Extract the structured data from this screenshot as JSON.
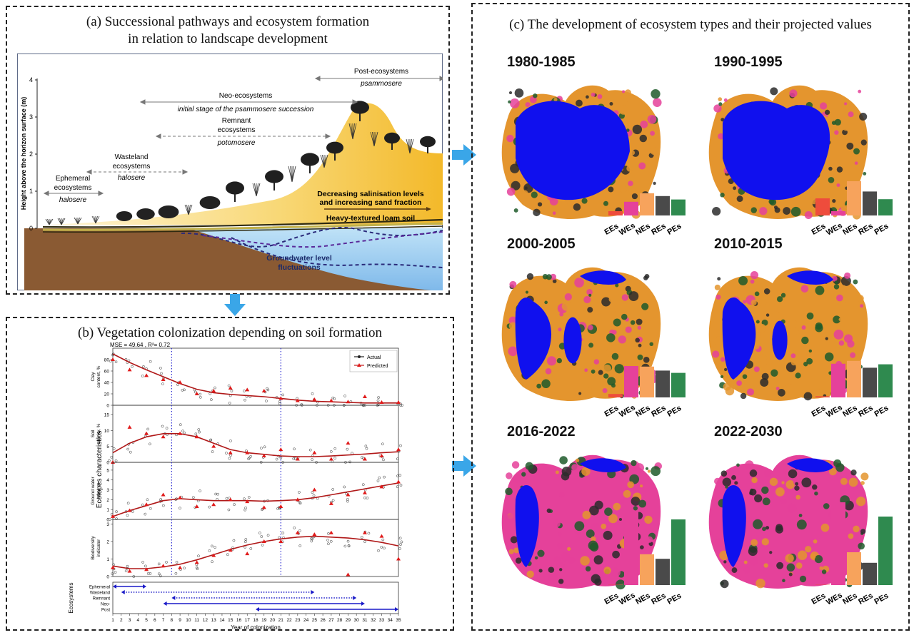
{
  "panel_a": {
    "title_line1": "(a) Successional pathways and ecosystem formation",
    "title_line2": "in relation to landscape development",
    "y_axis_label": "Height above the horizon surface (m)",
    "y_ticks": [
      "0",
      "1",
      "2",
      "3",
      "4"
    ],
    "labels": {
      "post": "Post-ecosystems",
      "post_sub": "psammosere",
      "neo": "Neo-ecosystems",
      "neo_sub": "initial stage of the psammosere succession",
      "remnant1": "Remnant",
      "remnant2": "ecosystems",
      "remnant_sub": "potomosere",
      "wasteland1": "Wasteland",
      "wasteland2": "ecosystems",
      "wasteland_sub": "halosere",
      "ephemeral1": "Ephemeral",
      "ephemeral2": "ecosystems",
      "ephemeral_sub": "halosere",
      "decreasing1": "Decreasing salinisation levels",
      "decreasing2": "and increasing sand fraction",
      "loam": "Heavy-textured loam soil",
      "gw1": "Groundwater level",
      "gw2": "fluctuations"
    }
  },
  "panel_b": {
    "title": "(b) Vegetation colonization depending on soil formation",
    "mse_label": "MSE = 49.64 , R²= 0.72",
    "legend_actual": "Actual",
    "legend_predicted": "Predicted",
    "group_label": "Ecotopes characteristics",
    "x_label": "Year of colonization",
    "eco_label": "Ecosystems",
    "x_ticks": [
      "1",
      "2",
      "3",
      "4",
      "5",
      "6",
      "7",
      "8",
      "9",
      "10",
      "11",
      "12",
      "13",
      "14",
      "15",
      "16",
      "17",
      "18",
      "19",
      "20",
      "21",
      "22",
      "23",
      "24",
      "25",
      "26",
      "27",
      "28",
      "29",
      "30",
      "31",
      "32",
      "33",
      "34",
      "35"
    ],
    "subplots": [
      {
        "ylabel1": "Clay",
        "ylabel2": "content, %",
        "yticks": [
          "0",
          "20",
          "40",
          "60",
          "80"
        ],
        "ymax": 95
      },
      {
        "ylabel1": "Soil",
        "ylabel2": "salinity, %",
        "yticks": [
          "0",
          "5",
          "10",
          "15"
        ],
        "ymax": 17
      },
      {
        "ylabel1": "Ground water",
        "ylabel2": "level, m",
        "yticks": [
          "0",
          "1",
          "2",
          "3",
          "4",
          "5"
        ],
        "ymax": 5.5
      },
      {
        "ylabel1": "Biodiversity",
        "ylabel2": "indicator",
        "yticks": [
          "0",
          "1",
          "2",
          "3"
        ],
        "ymax": 3.1
      }
    ],
    "ecosystem_rows": [
      {
        "name": "Ephemeral",
        "start": 1,
        "end": 5,
        "style": "solid"
      },
      {
        "name": "Wasteland",
        "start": 2,
        "end": 25,
        "style": "dotted"
      },
      {
        "name": "Remnant",
        "start": 8,
        "end": 30,
        "style": "dotted"
      },
      {
        "name": "Neo-",
        "start": 7,
        "end": 31,
        "style": "solid"
      },
      {
        "name": "Post",
        "start": 18,
        "end": 35,
        "style": "solid"
      }
    ],
    "vlines": [
      8,
      21
    ]
  },
  "chart_data": [
    {
      "type": "scatter",
      "title": "Clay content, %",
      "x": [
        1,
        3,
        5,
        7,
        9,
        11,
        13,
        15,
        17,
        19,
        21,
        23,
        25,
        27,
        29,
        31,
        33,
        35
      ],
      "series": [
        {
          "name": "Predicted",
          "values": [
            80,
            62,
            52,
            45,
            40,
            20,
            25,
            30,
            27,
            25,
            12,
            8,
            10,
            8,
            6,
            15,
            5,
            5
          ]
        }
      ],
      "fitted_curve": [
        90,
        75,
        62,
        50,
        38,
        28,
        22,
        19,
        17,
        15,
        12,
        9,
        7,
        6,
        5,
        4,
        4,
        4
      ]
    },
    {
      "type": "scatter",
      "title": "Soil salinity, %",
      "x": [
        1,
        3,
        5,
        7,
        9,
        11,
        13,
        15,
        17,
        19,
        21,
        23,
        25,
        27,
        29,
        31,
        33,
        35
      ],
      "series": [
        {
          "name": "Predicted",
          "values": [
            0,
            11,
            9,
            8,
            9,
            8,
            5,
            3,
            3,
            2,
            4,
            1,
            3,
            1,
            6,
            1,
            2,
            4
          ]
        }
      ],
      "fitted_curve": [
        3,
        6,
        8,
        9,
        9,
        8,
        6,
        4,
        3,
        2.5,
        2,
        1.8,
        1.8,
        2,
        2.3,
        2.6,
        3,
        3.3
      ]
    },
    {
      "type": "scatter",
      "title": "Ground water level, m",
      "x": [
        1,
        3,
        5,
        7,
        9,
        11,
        13,
        15,
        17,
        19,
        21,
        23,
        25,
        27,
        29,
        31,
        33,
        35
      ],
      "series": [
        {
          "name": "Predicted",
          "values": [
            0.3,
            0.9,
            1.5,
            2.5,
            2.2,
            1.3,
            1.5,
            2.0,
            1.8,
            1.2,
            1.3,
            2.0,
            3.0,
            1.6,
            2.5,
            2.7,
            3.3,
            3.8
          ]
        }
      ],
      "fitted_curve": [
        0.3,
        0.9,
        1.4,
        1.9,
        2.1,
        2.0,
        1.9,
        1.9,
        1.9,
        1.85,
        1.9,
        2.0,
        2.2,
        2.5,
        2.8,
        3.1,
        3.4,
        3.7
      ]
    },
    {
      "type": "scatter",
      "title": "Biodiversity indicator",
      "x": [
        1,
        3,
        5,
        7,
        9,
        11,
        13,
        15,
        17,
        19,
        21,
        23,
        25,
        27,
        29,
        31,
        33,
        35
      ],
      "series": [
        {
          "name": "Predicted",
          "values": [
            0.5,
            0.3,
            0.4,
            0.6,
            0.5,
            0.8,
            1.2,
            1.5,
            1.3,
            2.0,
            2.0,
            2.5,
            2.4,
            2.5,
            0.1,
            2.5,
            2.3,
            1.0
          ]
        }
      ],
      "fitted_curve": [
        0.6,
        0.45,
        0.45,
        0.55,
        0.7,
        0.95,
        1.25,
        1.55,
        1.8,
        2.0,
        2.15,
        2.25,
        2.3,
        2.25,
        2.2,
        2.1,
        1.95,
        1.75
      ]
    },
    {
      "type": "bar",
      "title": "1980-1985",
      "categories": [
        "EEs",
        "WEs",
        "NEs",
        "REs",
        "PEs"
      ],
      "values": [
        0.15,
        0.48,
        0.78,
        0.68,
        0.56
      ]
    },
    {
      "type": "bar",
      "title": "1990-1995",
      "categories": [
        "EEs",
        "WEs",
        "NEs",
        "REs",
        "PEs"
      ],
      "values": [
        0.6,
        0.15,
        1.2,
        0.84,
        0.57
      ]
    },
    {
      "type": "bar",
      "title": "2000-2005",
      "categories": [
        "EEs",
        "WEs",
        "NEs",
        "REs",
        "PEs"
      ],
      "values": [
        0.12,
        1.1,
        1.08,
        0.94,
        0.86
      ]
    },
    {
      "type": "bar",
      "title": "2010-2015",
      "categories": [
        "EEs",
        "WEs",
        "NEs",
        "REs",
        "PEs"
      ],
      "values": [
        0.04,
        1.18,
        1.28,
        1.04,
        1.16
      ]
    },
    {
      "type": "bar",
      "title": "2016-2022",
      "categories": [
        "EEs",
        "WEs",
        "NEs",
        "REs",
        "PEs"
      ],
      "values": [
        0.01,
        2.6,
        1.08,
        0.92,
        2.3
      ]
    },
    {
      "type": "bar",
      "title": "2022-2030",
      "categories": [
        "EEs",
        "WEs",
        "NEs",
        "REs",
        "PEs"
      ],
      "values": [
        0.01,
        2.9,
        1.15,
        0.78,
        2.4
      ]
    }
  ],
  "panel_c": {
    "title": "(c) The development of ecosystem types and their projected values",
    "colors": {
      "EEs": "#ee4c3c",
      "WEs": "#e5419a",
      "NEs": "#f7a35c",
      "REs": "#4a4a4a",
      "PEs": "#2f8a4f",
      "water": "#1010ee",
      "green": "#1e5a2a",
      "orange": "#e4952e",
      "dark": "#2b2b2b"
    },
    "eras": [
      {
        "label": "1980-1985"
      },
      {
        "label": "1990-1995"
      },
      {
        "label": "2000-2005"
      },
      {
        "label": "2010-2015"
      },
      {
        "label": "2016-2022"
      },
      {
        "label": "2022-2030"
      }
    ]
  }
}
